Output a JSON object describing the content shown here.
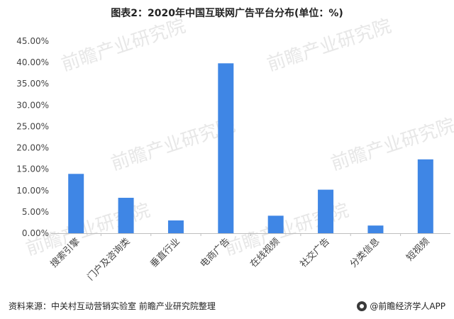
{
  "chart_data": {
    "type": "bar",
    "title": "图表2：2020年中国互联网广告平台分布(单位：%)",
    "categories": [
      "搜索引擎",
      "门户及咨询类",
      "垂直行业",
      "电商广告",
      "在线视频",
      "社交广告",
      "分类信息",
      "短视频"
    ],
    "values": [
      13.9,
      8.3,
      3.0,
      39.8,
      4.1,
      10.2,
      1.8,
      17.3
    ],
    "yticks": [
      "0.00%",
      "5.00%",
      "10.00%",
      "15.00%",
      "20.00%",
      "25.00%",
      "30.00%",
      "35.00%",
      "40.00%",
      "45.00%"
    ],
    "ylim": [
      0,
      45
    ],
    "ystep": 5,
    "grid": false,
    "bar_color": "#3F86E5"
  },
  "footer": {
    "source": "资料来源：中关村互动营销实验室 前瞻产业研究院整理",
    "brand": "@前瞻经济学人APP"
  },
  "watermark": {
    "text": "前瞻产业研究院",
    "color": "#e7e7e7"
  }
}
